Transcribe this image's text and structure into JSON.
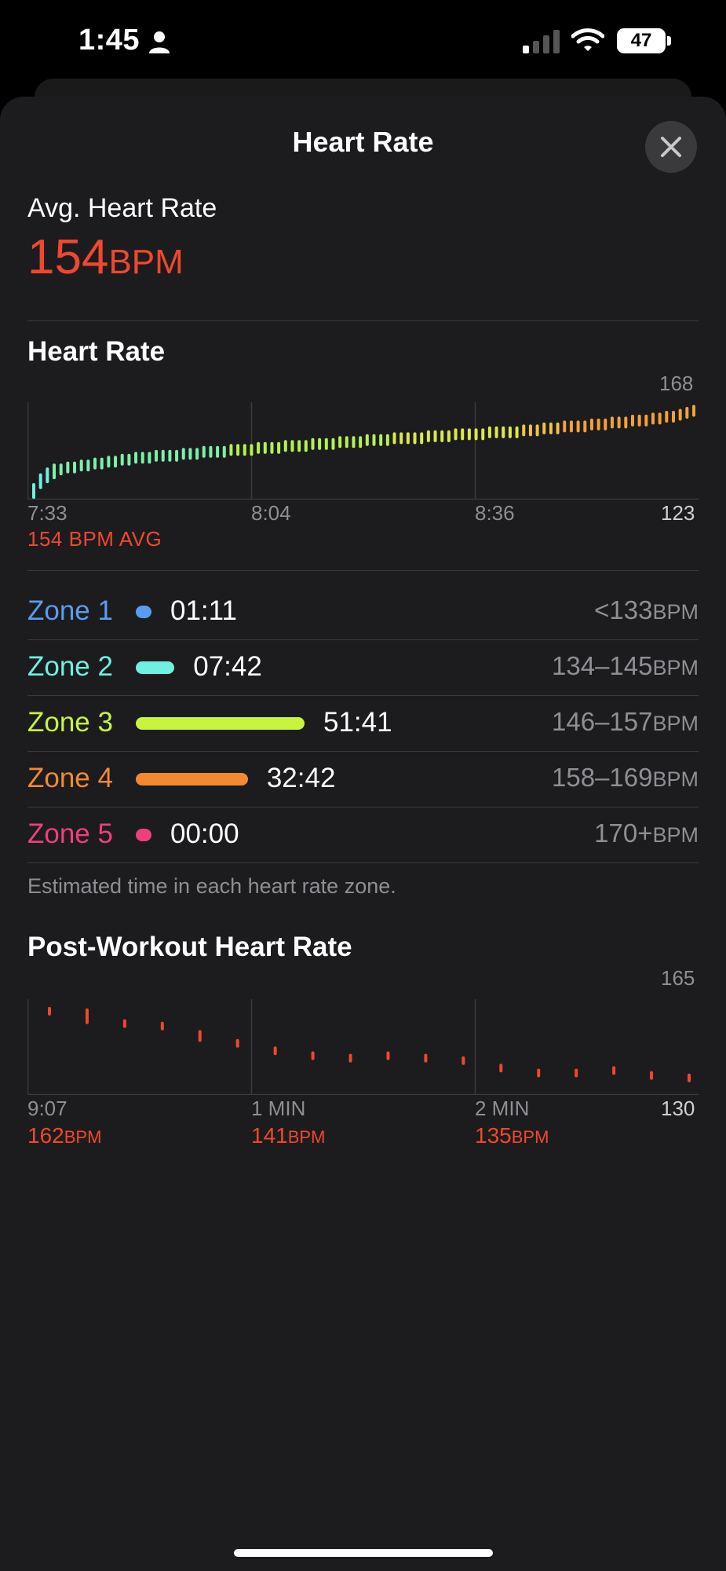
{
  "status_bar": {
    "time": "1:45",
    "battery": "47",
    "icons": [
      "person-icon",
      "cellular-signal-icon",
      "wifi-icon",
      "battery-icon"
    ]
  },
  "header": {
    "title": "Heart Rate",
    "close_icon": "close-icon"
  },
  "average": {
    "label": "Avg. Heart Rate",
    "value": "154",
    "unit": "BPM"
  },
  "heart_rate_section": {
    "title": "Heart Rate",
    "y_max_label": "168",
    "y_min_label": "123",
    "x_labels": [
      "7:33",
      "8:04",
      "8:36"
    ],
    "avg_label": "154 BPM AVG"
  },
  "zones": [
    {
      "label": "Zone 1",
      "time": "01:11",
      "range": "<133",
      "unit": "BPM",
      "color": "#5b9cf0",
      "fraction": 0.0
    },
    {
      "label": "Zone 2",
      "time": "07:42",
      "range": "134–145",
      "unit": "BPM",
      "color": "#6ff0e0",
      "fraction": 0.15
    },
    {
      "label": "Zone 3",
      "time": "51:41",
      "range": "146–157",
      "unit": "BPM",
      "color": "#c8f53c",
      "fraction": 1.0
    },
    {
      "label": "Zone 4",
      "time": "32:42",
      "range": "158–169",
      "unit": "BPM",
      "color": "#f28a32",
      "fraction": 0.63
    },
    {
      "label": "Zone 5",
      "time": "00:00",
      "range": "170+",
      "unit": "BPM",
      "color": "#ef3f7a",
      "fraction": 0.0
    }
  ],
  "zones_caption": "Estimated time in each heart rate zone.",
  "post_workout": {
    "title": "Post-Workout Heart Rate",
    "y_max_label": "165",
    "y_min_label": "130",
    "x_labels": [
      "9:07",
      "1 MIN",
      "2 MIN"
    ],
    "readings": [
      {
        "value": "162",
        "unit": "BPM"
      },
      {
        "value": "141",
        "unit": "BPM"
      },
      {
        "value": "135",
        "unit": "BPM"
      }
    ]
  },
  "chart_data": [
    {
      "type": "scatter",
      "title": "Heart Rate",
      "x_ticks": [
        "7:33",
        "8:04",
        "8:36"
      ],
      "ylim": [
        123,
        168
      ],
      "y": [
        125,
        130,
        133,
        135,
        136,
        137,
        137,
        138,
        138,
        139,
        139,
        140,
        140,
        141,
        141,
        142,
        142,
        142,
        143,
        143,
        143,
        143,
        144,
        144,
        144,
        145,
        145,
        145,
        145,
        146,
        146,
        146,
        146,
        147,
        147,
        147,
        147,
        148,
        148,
        148,
        148,
        149,
        149,
        149,
        149,
        150,
        150,
        150,
        150,
        151,
        151,
        151,
        151,
        152,
        152,
        152,
        152,
        152,
        153,
        153,
        153,
        153,
        154,
        154,
        154,
        154,
        154,
        155,
        155,
        155,
        155,
        155,
        156,
        156,
        156,
        157,
        157,
        157,
        158,
        158,
        158,
        158,
        159,
        159,
        159,
        160,
        160,
        160,
        161,
        161,
        161,
        162,
        162,
        163,
        163,
        164,
        165,
        166
      ],
      "avg": 154,
      "grid": true
    },
    {
      "type": "scatter",
      "title": "Post-Workout Heart Rate",
      "x_ticks": [
        "9:07",
        "1 MIN",
        "2 MIN"
      ],
      "ylim": [
        130,
        165
      ],
      "y": [
        162,
        160,
        157,
        156,
        152,
        149,
        146,
        144,
        143,
        144,
        143,
        142,
        139,
        137,
        137,
        138,
        136,
        135
      ],
      "grid": true
    }
  ]
}
